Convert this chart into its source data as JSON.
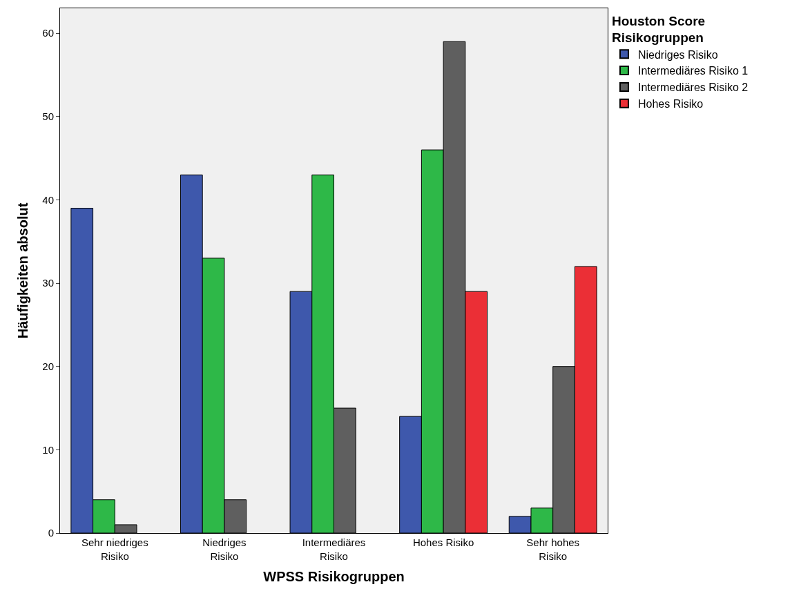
{
  "chart_data": {
    "type": "bar",
    "xlabel": "WPSS Risikogruppen",
    "ylabel": "Häufigkeiten absolut",
    "legend_title": "Houston Score\nRisikogruppen",
    "categories": [
      "Sehr niedriges\nRisiko",
      "Niedriges\nRisiko",
      "Intermediäres\nRisiko",
      "Hohes Risiko",
      "Sehr hohes\nRisiko"
    ],
    "series": [
      {
        "name": "Niedriges Risiko",
        "color": "#3e58ac",
        "values": [
          39,
          43,
          29,
          14,
          2
        ]
      },
      {
        "name": "Intermediäres Risiko 1",
        "color": "#2eb848",
        "values": [
          4,
          33,
          43,
          46,
          3
        ]
      },
      {
        "name": "Intermediäres Risiko 2",
        "color": "#5f5f5f",
        "values": [
          1,
          4,
          15,
          59,
          20
        ]
      },
      {
        "name": "Hohes Risiko",
        "color": "#eb2f36",
        "values": [
          null,
          null,
          null,
          29,
          32
        ]
      }
    ],
    "ylim": [
      0,
      63
    ],
    "yticks": [
      0,
      10,
      20,
      30,
      40,
      50,
      60
    ],
    "grid": false,
    "legend": "top right"
  }
}
